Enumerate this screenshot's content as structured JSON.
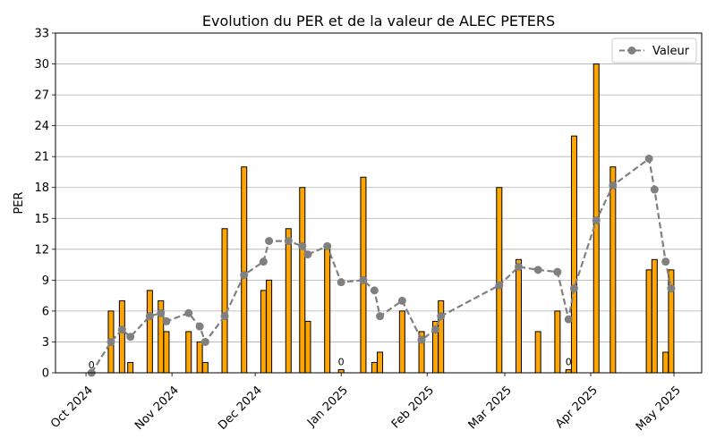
{
  "chart_data": {
    "type": "bar",
    "title": "Evolution du PER et de la valeur de ALEC PETERS",
    "ylabel": "PER",
    "xlabel": "",
    "ylim": [
      0,
      33
    ],
    "yticks": [
      0,
      3,
      6,
      9,
      12,
      15,
      18,
      21,
      24,
      27,
      30,
      33
    ],
    "xlim": [
      "2024-09-20",
      "2025-05-11"
    ],
    "xticks": [
      {
        "date": "2024-10-01",
        "label": "Oct 2024"
      },
      {
        "date": "2024-11-01",
        "label": "Nov 2024"
      },
      {
        "date": "2024-12-01",
        "label": "Dec 2024"
      },
      {
        "date": "2025-01-01",
        "label": "Jan 2025"
      },
      {
        "date": "2025-02-01",
        "label": "Feb 2025"
      },
      {
        "date": "2025-03-01",
        "label": "Mar 2025"
      },
      {
        "date": "2025-04-01",
        "label": "Apr 2025"
      },
      {
        "date": "2025-05-01",
        "label": "May 2025"
      }
    ],
    "grid": "y",
    "legend": {
      "position": "top-right",
      "entries": [
        "Valeur"
      ]
    },
    "colors": {
      "bar_fill": "#FFA500",
      "bar_edge": "#000000",
      "line": "#808080",
      "grid": "#b0b0b0"
    },
    "series": [
      {
        "type": "bar",
        "points": [
          {
            "date": "2024-10-03",
            "value": 0,
            "label": "0"
          },
          {
            "date": "2024-10-10",
            "value": 6
          },
          {
            "date": "2024-10-14",
            "value": 7
          },
          {
            "date": "2024-10-17",
            "value": 1
          },
          {
            "date": "2024-10-24",
            "value": 8
          },
          {
            "date": "2024-10-28",
            "value": 7
          },
          {
            "date": "2024-10-30",
            "value": 4
          },
          {
            "date": "2024-11-07",
            "value": 4
          },
          {
            "date": "2024-11-11",
            "value": 3
          },
          {
            "date": "2024-11-13",
            "value": 1
          },
          {
            "date": "2024-11-20",
            "value": 14
          },
          {
            "date": "2024-11-27",
            "value": 20
          },
          {
            "date": "2024-12-04",
            "value": 8
          },
          {
            "date": "2024-12-06",
            "value": 9
          },
          {
            "date": "2024-12-13",
            "value": 14
          },
          {
            "date": "2024-12-18",
            "value": 18
          },
          {
            "date": "2024-12-20",
            "value": 5
          },
          {
            "date": "2024-12-27",
            "value": 12
          },
          {
            "date": "2025-01-01",
            "value": 0.3,
            "label": "0"
          },
          {
            "date": "2025-01-09",
            "value": 19
          },
          {
            "date": "2025-01-13",
            "value": 1
          },
          {
            "date": "2025-01-15",
            "value": 2
          },
          {
            "date": "2025-01-23",
            "value": 6
          },
          {
            "date": "2025-01-30",
            "value": 4
          },
          {
            "date": "2025-02-04",
            "value": 5
          },
          {
            "date": "2025-02-06",
            "value": 7
          },
          {
            "date": "2025-02-27",
            "value": 18
          },
          {
            "date": "2025-03-06",
            "value": 11
          },
          {
            "date": "2025-03-13",
            "value": 4
          },
          {
            "date": "2025-03-20",
            "value": 6
          },
          {
            "date": "2025-03-24",
            "value": 0.3,
            "label": "0"
          },
          {
            "date": "2025-03-26",
            "value": 23
          },
          {
            "date": "2025-04-03",
            "value": 30
          },
          {
            "date": "2025-04-09",
            "value": 20
          },
          {
            "date": "2025-04-22",
            "value": 10
          },
          {
            "date": "2025-04-24",
            "value": 11
          },
          {
            "date": "2025-04-28",
            "value": 2
          },
          {
            "date": "2025-04-30",
            "value": 10
          }
        ]
      },
      {
        "type": "line",
        "name": "Valeur",
        "style": "dashed",
        "marker": "circle",
        "points": [
          {
            "date": "2024-10-03",
            "value": 0
          },
          {
            "date": "2024-10-10",
            "value": 3
          },
          {
            "date": "2024-10-14",
            "value": 4.2
          },
          {
            "date": "2024-10-17",
            "value": 3.5
          },
          {
            "date": "2024-10-24",
            "value": 5.5
          },
          {
            "date": "2024-10-28",
            "value": 5.8
          },
          {
            "date": "2024-10-30",
            "value": 5
          },
          {
            "date": "2024-11-07",
            "value": 5.8
          },
          {
            "date": "2024-11-11",
            "value": 4.5
          },
          {
            "date": "2024-11-13",
            "value": 3
          },
          {
            "date": "2024-11-20",
            "value": 5.5
          },
          {
            "date": "2024-11-27",
            "value": 9.5
          },
          {
            "date": "2024-12-04",
            "value": 10.8
          },
          {
            "date": "2024-12-06",
            "value": 12.8
          },
          {
            "date": "2024-12-13",
            "value": 12.8
          },
          {
            "date": "2024-12-18",
            "value": 12.3
          },
          {
            "date": "2024-12-20",
            "value": 11.5
          },
          {
            "date": "2024-12-27",
            "value": 12.3
          },
          {
            "date": "2025-01-01",
            "value": 8.8
          },
          {
            "date": "2025-01-09",
            "value": 9
          },
          {
            "date": "2025-01-13",
            "value": 8
          },
          {
            "date": "2025-01-15",
            "value": 5.5
          },
          {
            "date": "2025-01-23",
            "value": 7
          },
          {
            "date": "2025-01-30",
            "value": 3.2
          },
          {
            "date": "2025-02-04",
            "value": 4.2
          },
          {
            "date": "2025-02-06",
            "value": 5.5
          },
          {
            "date": "2025-02-27",
            "value": 8.5
          },
          {
            "date": "2025-03-06",
            "value": 10.3
          },
          {
            "date": "2025-03-13",
            "value": 10
          },
          {
            "date": "2025-03-20",
            "value": 9.8
          },
          {
            "date": "2025-03-24",
            "value": 5.2
          },
          {
            "date": "2025-03-26",
            "value": 8.2
          },
          {
            "date": "2025-04-03",
            "value": 14.8
          },
          {
            "date": "2025-04-09",
            "value": 18.2
          },
          {
            "date": "2025-04-22",
            "value": 20.8
          },
          {
            "date": "2025-04-24",
            "value": 17.8
          },
          {
            "date": "2025-04-28",
            "value": 10.8
          },
          {
            "date": "2025-04-30",
            "value": 8.2
          }
        ]
      }
    ]
  }
}
